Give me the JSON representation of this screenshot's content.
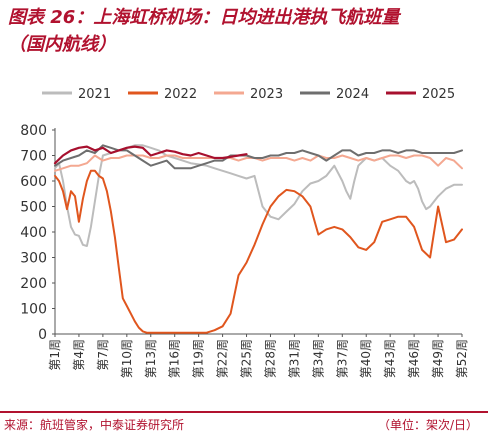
{
  "header": {
    "title_line1": "图表 26：上海虹桥机场：日均进出港执飞航班量",
    "title_line2": "（国内航线）"
  },
  "footer": {
    "source": "来源：航班管家，中泰证券研究所",
    "unit": "（单位：架次/日）"
  },
  "chart_data": {
    "type": "line",
    "xlabel": "",
    "ylabel": "",
    "ylim": [
      0,
      800
    ],
    "yticks": [
      0,
      100,
      200,
      300,
      400,
      500,
      600,
      700,
      800
    ],
    "week_range": [
      1,
      52
    ],
    "tick_labels": [
      "第1周",
      "第4周",
      "第7周",
      "第10周",
      "第13周",
      "第16周",
      "第19周",
      "第22周",
      "第25周",
      "第28周",
      "第31周",
      "第34周",
      "第37周",
      "第40周",
      "第43周",
      "第46周",
      "第49周",
      "第52周"
    ],
    "grid": false,
    "legend_position": "top",
    "series": [
      {
        "name": "2021",
        "color": "#bcbcbc",
        "x": [
          1,
          1.5,
          2,
          2.5,
          3,
          3.5,
          4,
          4.5,
          5,
          5.5,
          6,
          6.5,
          7,
          8,
          9,
          10,
          11,
          12,
          13,
          14,
          15,
          16,
          17,
          18,
          19,
          20,
          21,
          22,
          23,
          24,
          25,
          26,
          27,
          28,
          29,
          30,
          31,
          32,
          33,
          34,
          35,
          36,
          37,
          37.5,
          38,
          38.5,
          39,
          40,
          41,
          42,
          43,
          44,
          45,
          45.5,
          46,
          46.5,
          47,
          47.5,
          48,
          49,
          50,
          51,
          52
        ],
        "y": [
          650,
          670,
          600,
          500,
          420,
          390,
          385,
          350,
          345,
          420,
          520,
          620,
          700,
          710,
          720,
          730,
          740,
          740,
          730,
          720,
          700,
          690,
          680,
          670,
          665,
          660,
          650,
          640,
          630,
          620,
          610,
          620,
          500,
          460,
          450,
          480,
          510,
          560,
          590,
          600,
          620,
          660,
          600,
          560,
          530,
          600,
          660,
          690,
          680,
          690,
          660,
          640,
          600,
          590,
          600,
          570,
          520,
          490,
          500,
          540,
          570,
          585,
          585
        ]
      },
      {
        "name": "2022",
        "color": "#e0561e",
        "x": [
          1,
          1.5,
          2,
          2.5,
          3,
          3.5,
          4,
          4.5,
          5,
          5.5,
          6,
          6.5,
          7,
          7.5,
          8,
          8.5,
          9,
          9.5,
          10,
          10.5,
          11,
          11.5,
          12,
          12.5,
          13,
          14,
          15,
          16,
          17,
          18,
          19,
          20,
          21,
          22,
          23,
          24,
          25,
          26,
          27,
          28,
          29,
          30,
          31,
          32,
          33,
          34,
          35,
          36,
          37,
          38,
          39,
          40,
          41,
          42,
          43,
          44,
          45,
          46,
          47,
          48,
          49,
          50,
          51,
          52
        ],
        "y": [
          620,
          600,
          560,
          490,
          560,
          540,
          440,
          530,
          600,
          640,
          640,
          620,
          610,
          560,
          480,
          380,
          260,
          140,
          110,
          80,
          50,
          25,
          10,
          5,
          5,
          5,
          5,
          5,
          5,
          5,
          5,
          5,
          15,
          30,
          80,
          230,
          280,
          350,
          430,
          500,
          540,
          565,
          560,
          540,
          500,
          390,
          410,
          420,
          410,
          380,
          340,
          330,
          360,
          440,
          450,
          460,
          460,
          420,
          330,
          300,
          500,
          360,
          370,
          410
        ]
      },
      {
        "name": "2023",
        "color": "#f4a891",
        "x": [
          1,
          2,
          3,
          4,
          5,
          6,
          7,
          8,
          9,
          10,
          11,
          12,
          13,
          14,
          15,
          16,
          17,
          18,
          19,
          20,
          21,
          22,
          23,
          24,
          25,
          26,
          27,
          28,
          29,
          30,
          31,
          32,
          33,
          34,
          35,
          36,
          37,
          38,
          39,
          40,
          41,
          42,
          43,
          44,
          45,
          46,
          47,
          48,
          49,
          50,
          51,
          52
        ],
        "y": [
          640,
          650,
          660,
          660,
          670,
          700,
          680,
          690,
          690,
          700,
          700,
          700,
          690,
          690,
          700,
          700,
          690,
          690,
          690,
          690,
          690,
          690,
          690,
          680,
          690,
          690,
          680,
          690,
          690,
          690,
          680,
          690,
          680,
          700,
          690,
          690,
          700,
          690,
          680,
          690,
          680,
          690,
          700,
          700,
          690,
          700,
          700,
          690,
          660,
          690,
          680,
          650
        ]
      },
      {
        "name": "2024",
        "color": "#6e6e6e",
        "x": [
          1,
          2,
          3,
          4,
          5,
          6,
          7,
          8,
          9,
          10,
          11,
          12,
          13,
          14,
          15,
          16,
          17,
          18,
          19,
          20,
          21,
          22,
          23,
          24,
          25,
          26,
          27,
          28,
          29,
          30,
          31,
          32,
          33,
          34,
          35,
          36,
          37,
          38,
          39,
          40,
          41,
          42,
          43,
          44,
          45,
          46,
          47,
          48,
          49,
          50,
          51,
          52
        ],
        "y": [
          660,
          680,
          690,
          700,
          720,
          710,
          740,
          730,
          720,
          720,
          700,
          680,
          660,
          670,
          680,
          650,
          650,
          650,
          660,
          670,
          680,
          680,
          700,
          700,
          700,
          690,
          690,
          700,
          700,
          710,
          710,
          720,
          710,
          700,
          680,
          700,
          720,
          720,
          700,
          710,
          710,
          720,
          720,
          710,
          720,
          720,
          710,
          710,
          710,
          710,
          710,
          720
        ]
      },
      {
        "name": "2025",
        "color": "#a7102e",
        "x": [
          1,
          2,
          3,
          4,
          5,
          6,
          7,
          8,
          9,
          10,
          11,
          12,
          13,
          14,
          15,
          16,
          17,
          18,
          19,
          20,
          21,
          22,
          23,
          24,
          25
        ],
        "y": [
          670,
          700,
          720,
          730,
          735,
          720,
          730,
          710,
          720,
          730,
          735,
          730,
          700,
          710,
          720,
          715,
          705,
          700,
          710,
          700,
          690,
          690,
          695,
          700,
          705
        ]
      }
    ]
  }
}
